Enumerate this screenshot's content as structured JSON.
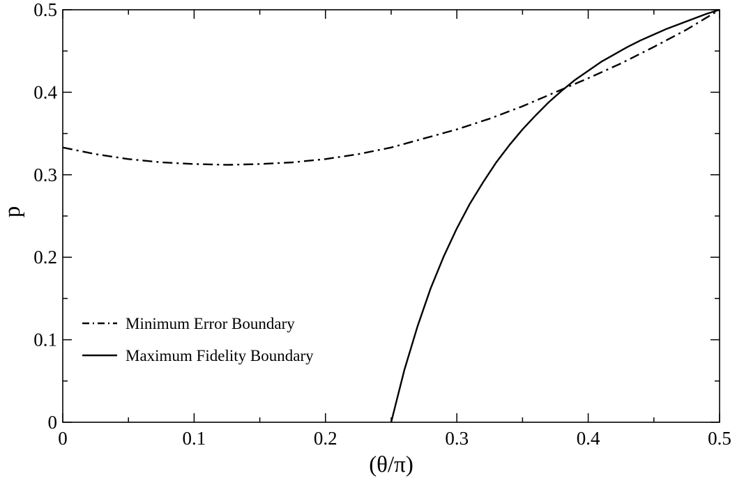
{
  "chart_data": {
    "type": "line",
    "title": "",
    "xlabel": "(θ/π)",
    "ylabel": "p",
    "xlim": [
      0,
      0.5
    ],
    "ylim": [
      0,
      0.5
    ],
    "x_ticks": [
      "0",
      "0.1",
      "0.2",
      "0.3",
      "0.4",
      "0.5"
    ],
    "y_ticks": [
      "0",
      "0.1",
      "0.2",
      "0.3",
      "0.4",
      "0.5"
    ],
    "grid": false,
    "legend_position": "lower-left",
    "series": [
      {
        "name": "Minimum Error Boundary",
        "line_style": "dash-dot",
        "color": "#000000",
        "x": [
          0,
          0.025,
          0.05,
          0.075,
          0.1,
          0.125,
          0.15,
          0.175,
          0.2,
          0.225,
          0.25,
          0.275,
          0.3,
          0.325,
          0.35,
          0.375,
          0.4,
          0.425,
          0.45,
          0.475,
          0.5
        ],
        "y": [
          0.333,
          0.325,
          0.319,
          0.315,
          0.313,
          0.312,
          0.313,
          0.315,
          0.319,
          0.325,
          0.333,
          0.344,
          0.355,
          0.368,
          0.383,
          0.4,
          0.417,
          0.435,
          0.455,
          0.476,
          0.5
        ]
      },
      {
        "name": "Maximum Fidelity Boundary",
        "line_style": "solid",
        "color": "#000000",
        "x": [
          0.25,
          0.26,
          0.27,
          0.28,
          0.29,
          0.3,
          0.31,
          0.32,
          0.33,
          0.34,
          0.35,
          0.36,
          0.37,
          0.38,
          0.39,
          0.4,
          0.41,
          0.42,
          0.43,
          0.44,
          0.45,
          0.46,
          0.47,
          0.48,
          0.49,
          0.5
        ],
        "y": [
          0,
          0.063,
          0.116,
          0.162,
          0.201,
          0.235,
          0.265,
          0.291,
          0.315,
          0.336,
          0.355,
          0.372,
          0.388,
          0.402,
          0.415,
          0.426,
          0.437,
          0.446,
          0.455,
          0.463,
          0.47,
          0.477,
          0.483,
          0.489,
          0.495,
          0.5
        ]
      }
    ]
  }
}
